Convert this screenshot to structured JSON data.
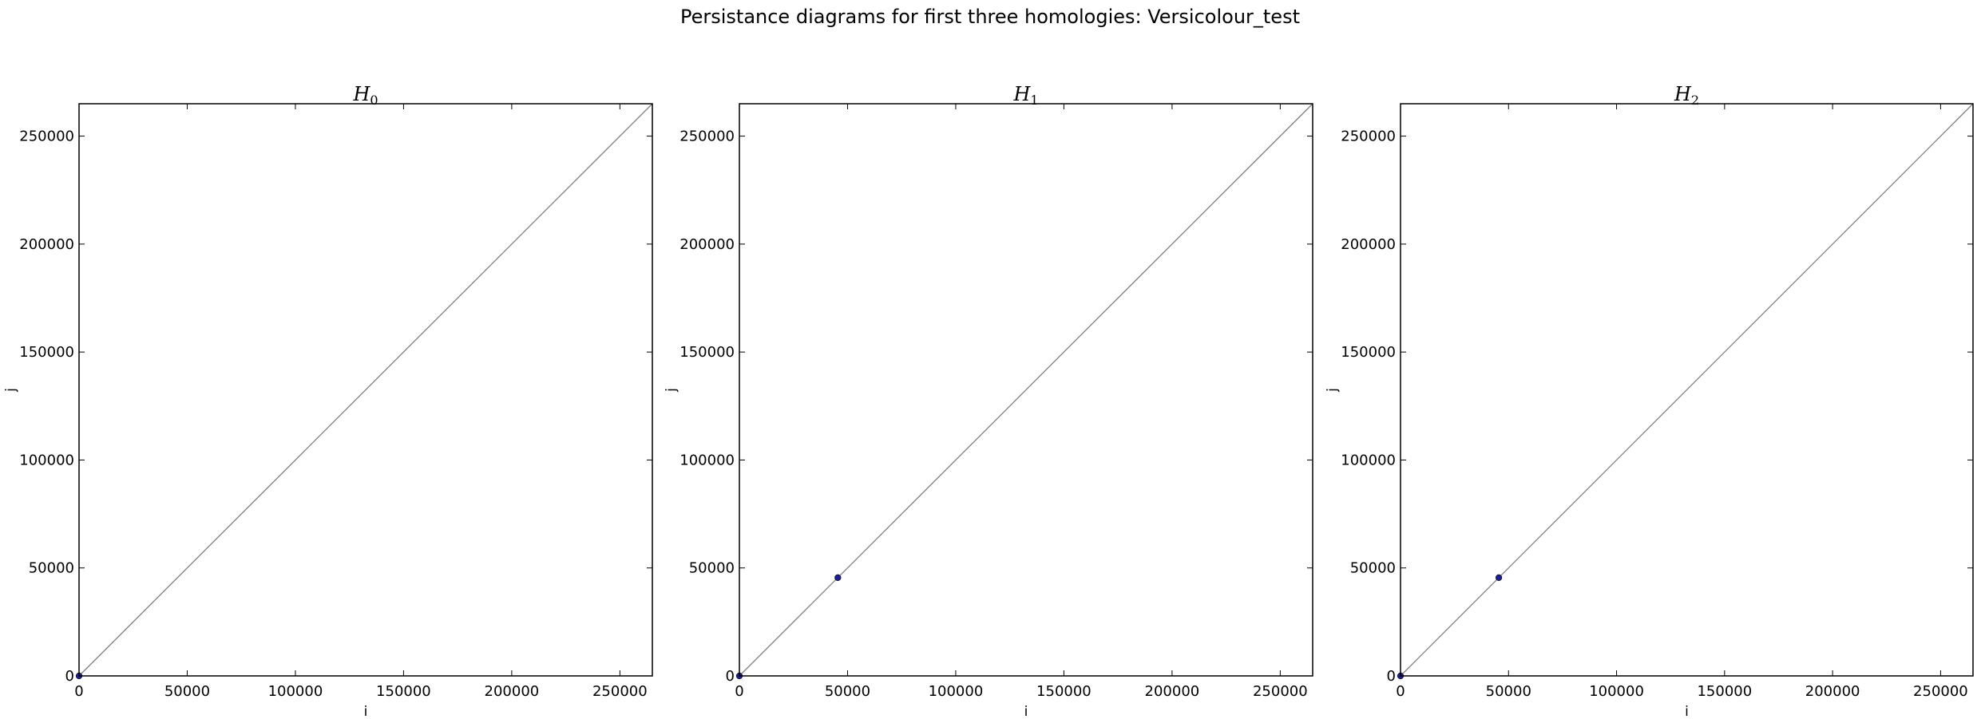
{
  "figure": {
    "suptitle": "Persistance diagrams for first three homologies: Versicolour_test"
  },
  "chart_data": [
    {
      "type": "scatter",
      "title": "H",
      "title_subscript": "0",
      "xlabel": "i",
      "ylabel": "j",
      "xlim": [
        0,
        265000
      ],
      "ylim": [
        0,
        265000
      ],
      "xticks": [
        0,
        50000,
        100000,
        150000,
        200000,
        250000
      ],
      "yticks": [
        0,
        50000,
        100000,
        150000,
        200000,
        250000
      ],
      "xtick_labels": [
        "0",
        "50000",
        "100000",
        "150000",
        "200000",
        "250000"
      ],
      "ytick_labels": [
        "0",
        "50000",
        "100000",
        "150000",
        "200000",
        "250000"
      ],
      "diagonal": true,
      "diagonal_color": "#808080",
      "point_color": "#1f1f8f",
      "points": [
        {
          "x": 0,
          "y": 0
        }
      ],
      "grid": false
    },
    {
      "type": "scatter",
      "title": "H",
      "title_subscript": "1",
      "xlabel": "i",
      "ylabel": "j",
      "xlim": [
        0,
        265000
      ],
      "ylim": [
        0,
        265000
      ],
      "xticks": [
        0,
        50000,
        100000,
        150000,
        200000,
        250000
      ],
      "yticks": [
        0,
        50000,
        100000,
        150000,
        200000,
        250000
      ],
      "xtick_labels": [
        "0",
        "50000",
        "100000",
        "150000",
        "200000",
        "250000"
      ],
      "ytick_labels": [
        "0",
        "50000",
        "100000",
        "150000",
        "200000",
        "250000"
      ],
      "diagonal": true,
      "diagonal_color": "#808080",
      "point_color": "#1f1f8f",
      "points": [
        {
          "x": 0,
          "y": 0
        },
        {
          "x": 45500,
          "y": 45500
        }
      ],
      "grid": false
    },
    {
      "type": "scatter",
      "title": "H",
      "title_subscript": "2",
      "xlabel": "i",
      "ylabel": "j",
      "xlim": [
        0,
        265000
      ],
      "ylim": [
        0,
        265000
      ],
      "xticks": [
        0,
        50000,
        100000,
        150000,
        200000,
        250000
      ],
      "yticks": [
        0,
        50000,
        100000,
        150000,
        200000,
        250000
      ],
      "xtick_labels": [
        "0",
        "50000",
        "100000",
        "150000",
        "200000",
        "250000"
      ],
      "ytick_labels": [
        "0",
        "50000",
        "100000",
        "150000",
        "200000",
        "250000"
      ],
      "diagonal": true,
      "diagonal_color": "#808080",
      "point_color": "#1f1f8f",
      "points": [
        {
          "x": 0,
          "y": 0
        },
        {
          "x": 45500,
          "y": 45500
        }
      ],
      "grid": false
    }
  ]
}
